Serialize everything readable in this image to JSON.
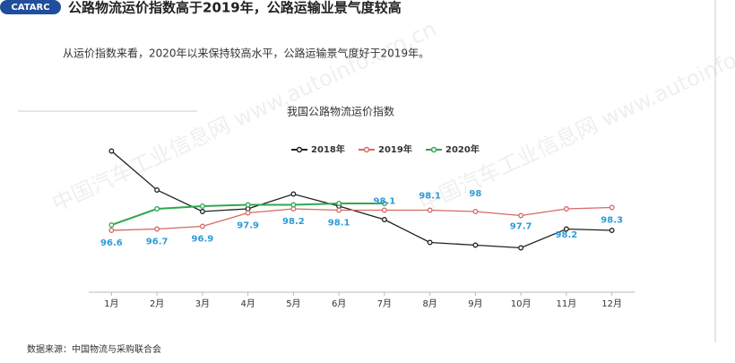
{
  "header": {
    "logo": "CATARC",
    "title": "公路物流运价指数高于2019年，公路运输业景气度较高",
    "subtitle": "从运价指数来看，2020年以来保持较高水平，公路运输景气度好于2019年。"
  },
  "watermark": "中国汽车工业信息网 www.autoinfo.org.cn",
  "source": "数据来源：中国物流与采购联合会",
  "chart_data": {
    "type": "line",
    "title": "我国公路物流运价指数",
    "categories": [
      "1月",
      "2月",
      "3月",
      "4月",
      "5月",
      "6月",
      "7月",
      "8月",
      "9月",
      "10月",
      "11月",
      "12月"
    ],
    "series": [
      {
        "name": "2018年",
        "color": "#222222",
        "values": [
          102.5,
          99.6,
          98.0,
          98.2,
          99.3,
          98.4,
          97.4,
          95.7,
          95.5,
          95.3,
          96.7,
          96.6
        ]
      },
      {
        "name": "2019年",
        "color": "#d46a64",
        "values": [
          96.6,
          96.7,
          96.9,
          97.9,
          98.2,
          98.1,
          98.1,
          98.1,
          98,
          97.7,
          98.2,
          98.3
        ]
      },
      {
        "name": "2020年",
        "color": "#2fa84f",
        "values": [
          97.0,
          98.2,
          98.4,
          98.5,
          98.5,
          98.6,
          98.6,
          null,
          null,
          null,
          null,
          null
        ]
      }
    ],
    "labeled_series": 1,
    "label_color": "#2e9bd6",
    "ylim": [
      92,
      105
    ],
    "legend": "top"
  }
}
